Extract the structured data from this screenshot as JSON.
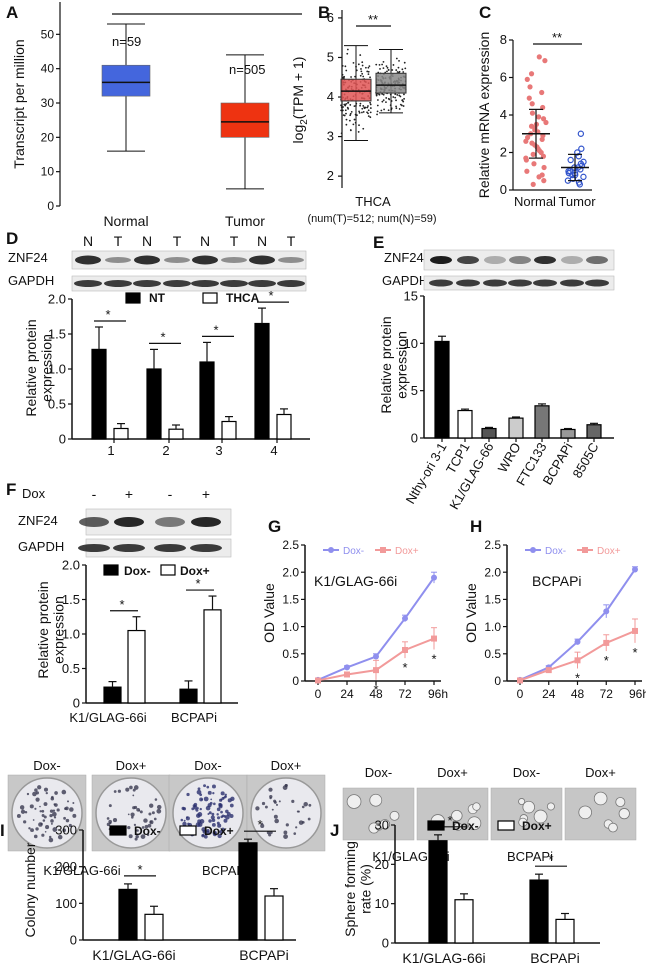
{
  "panels": {
    "A": {
      "letter": "A"
    },
    "B": {
      "letter": "B"
    },
    "C": {
      "letter": "C"
    },
    "D": {
      "letter": "D"
    },
    "E": {
      "letter": "E"
    },
    "F": {
      "letter": "F"
    },
    "G": {
      "letter": "G"
    },
    "H": {
      "letter": "H"
    },
    "I": {
      "letter": "I"
    },
    "J": {
      "letter": "J"
    }
  },
  "blots": {
    "D": {
      "rows": [
        "ZNF24",
        "GAPDH"
      ],
      "lanes": [
        "N",
        "T",
        "N",
        "T",
        "N",
        "T",
        "N",
        "T"
      ]
    },
    "E": {
      "rows": [
        "ZNF24",
        "GAPDH"
      ]
    },
    "F": {
      "rows": [
        "ZNF24",
        "GAPDH"
      ],
      "dox_label": "Dox",
      "lanes": [
        "-",
        "+",
        "-",
        "+"
      ]
    }
  },
  "images": {
    "I": {
      "labels": [
        "Dox-",
        "Dox+",
        "Dox-",
        "Dox+"
      ],
      "groups": [
        "K1/GLAG-66i",
        "BCPAPi"
      ]
    },
    "J": {
      "labels": [
        "Dox-",
        "Dox+",
        "Dox-",
        "Dox+"
      ],
      "groups": [
        "K1/GLAG-66i",
        "BCPAPi"
      ]
    }
  },
  "colors": {
    "normal_box": "#4466dd",
    "tumor_box": "#ee3311",
    "thca_red": "#e05555",
    "thca_grey": "#888888",
    "c_normal": "#e87878",
    "c_tumor": "#3355cc",
    "dox_minus": "#8f8fee",
    "dox_plus": "#f29a9a"
  },
  "chart_data": [
    {
      "id": "A",
      "type": "box",
      "ylabel": "Transcript per million",
      "categories": [
        "Normal",
        "Tumor"
      ],
      "ylim": [
        0,
        60
      ],
      "yticks": [
        0,
        10,
        20,
        30,
        40,
        50
      ],
      "annotations": [
        "n=59",
        "n=505"
      ],
      "boxes": [
        {
          "min": 16,
          "q1": 32,
          "median": 36,
          "q3": 41,
          "max": 53
        },
        {
          "min": 5,
          "q1": 20,
          "median": 24.5,
          "q3": 30,
          "max": 44
        }
      ]
    },
    {
      "id": "B",
      "type": "box",
      "ylabel": "log2(TPM + 1)",
      "ylabel_main": "log",
      "ylabel_sub": "2",
      "ylabel_rest": "(TPM + 1)",
      "xlabel": "THCA",
      "note": "(num(T)=512; num(N)=59)",
      "significance": "**",
      "ylim": [
        1.7,
        6.2
      ],
      "yticks": [
        2,
        3,
        4,
        5,
        6
      ],
      "boxes": [
        {
          "min": 2.9,
          "q1": 3.9,
          "median": 4.15,
          "q3": 4.45,
          "max": 5.3
        },
        {
          "min": 3.6,
          "q1": 4.1,
          "median": 4.3,
          "q3": 4.6,
          "max": 5.2
        }
      ]
    },
    {
      "id": "C",
      "type": "scatter",
      "ylabel": "Relative mRNA expression",
      "categories": [
        "Normal",
        "Tumor"
      ],
      "significance": "**",
      "ylim": [
        0,
        8
      ],
      "yticks": [
        0,
        2,
        4,
        6,
        8
      ],
      "means": [
        3.0,
        1.2
      ],
      "sd": [
        1.3,
        0.7
      ],
      "points": [
        [
          7.1,
          6.9,
          6.2,
          5.9,
          5.5,
          5.2,
          4.9,
          4.6,
          4.4,
          4.1,
          3.9,
          3.8,
          3.6,
          3.5,
          3.4,
          3.3,
          3.2,
          3.1,
          3.0,
          2.9,
          2.8,
          2.7,
          2.6,
          2.5,
          2.4,
          2.3,
          2.2,
          2.1,
          2.0,
          1.9,
          1.8,
          1.7,
          1.6,
          1.4,
          1.2,
          1.0,
          0.8,
          0.7,
          0.5,
          0.3
        ],
        [
          3.0,
          2.2,
          2.0,
          1.8,
          1.6,
          1.5,
          1.4,
          1.3,
          1.2,
          1.2,
          1.1,
          1.0,
          1.0,
          0.9,
          0.9,
          0.8,
          0.8,
          0.7,
          0.6,
          0.5,
          0.4,
          0.3
        ]
      ]
    },
    {
      "id": "D",
      "type": "bar",
      "ylabel": "Relative protein expression",
      "ylabel_l1": "Relative protein",
      "ylabel_l2": "expression",
      "categories": [
        "1",
        "2",
        "3",
        "4"
      ],
      "ylim": [
        0,
        2.0
      ],
      "yticks": [
        "0",
        "0.5",
        "1.0",
        "1.5",
        "2.0"
      ],
      "series": [
        {
          "name": "NT",
          "values": [
            1.28,
            1.0,
            1.1,
            1.65
          ],
          "err": [
            0.32,
            0.28,
            0.28,
            0.22
          ]
        },
        {
          "name": "THCA",
          "values": [
            0.15,
            0.14,
            0.25,
            0.35
          ],
          "err": [
            0.07,
            0.06,
            0.07,
            0.08
          ]
        }
      ],
      "significance": [
        "*",
        "*",
        "*",
        "*"
      ]
    },
    {
      "id": "E",
      "type": "bar",
      "ylabel": "Relative protein expression",
      "ylabel_l1": "Relative protein",
      "ylabel_l2": "expression",
      "categories": [
        "Nthy-ori 3-1",
        "TCP1",
        "K1/GLAG-66",
        "WRO",
        "FTC133",
        "BCPAPi",
        "8505C"
      ],
      "ylim": [
        0,
        15
      ],
      "yticks": [
        0,
        5,
        10,
        15
      ],
      "values": [
        10.2,
        2.9,
        1.0,
        2.1,
        3.4,
        0.9,
        1.4
      ],
      "err": [
        0.55,
        0.15,
        0.12,
        0.12,
        0.2,
        0.1,
        0.15
      ],
      "fills": [
        "#000000",
        "#ffffff",
        "#555555",
        "#cccccc",
        "#777777",
        "#999999",
        "#666666"
      ]
    },
    {
      "id": "F",
      "type": "bar",
      "ylabel": "Relative protein expression",
      "ylabel_l1": "Relative protein",
      "ylabel_l2": "expression",
      "categories": [
        "K1/GLAG-66i",
        "BCPAPi"
      ],
      "ylim": [
        0,
        2.0
      ],
      "yticks": [
        "0",
        "0.5",
        "1.0",
        "1.5",
        "2.0"
      ],
      "series": [
        {
          "name": "Dox-",
          "values": [
            0.23,
            0.2
          ],
          "err": [
            0.08,
            0.12
          ]
        },
        {
          "name": "Dox+",
          "values": [
            1.05,
            1.35
          ],
          "err": [
            0.2,
            0.2
          ]
        }
      ],
      "significance": [
        "*",
        "*"
      ]
    },
    {
      "id": "G",
      "type": "line",
      "ylabel": "OD Value",
      "title": "K1/GLAG-66i",
      "x": [
        "0",
        "24",
        "48",
        "72",
        "96h"
      ],
      "ylim": [
        0,
        2.5
      ],
      "yticks": [
        "0",
        "0.5",
        "1.0",
        "1.5",
        "2.0",
        "2.5"
      ],
      "series": [
        {
          "name": "Dox-",
          "values": [
            0.02,
            0.25,
            0.45,
            1.15,
            1.9
          ],
          "err": [
            0.02,
            0.03,
            0.05,
            0.06,
            0.1
          ]
        },
        {
          "name": "Dox+",
          "values": [
            0.01,
            0.12,
            0.2,
            0.57,
            0.78
          ],
          "err": [
            0.01,
            0.03,
            0.18,
            0.15,
            0.2
          ]
        }
      ],
      "significance": [
        "",
        "",
        "*",
        "*",
        "*"
      ]
    },
    {
      "id": "H",
      "type": "line",
      "ylabel": "OD Value",
      "title": "BCPAPi",
      "x": [
        "0",
        "24",
        "48",
        "72",
        "96h"
      ],
      "ylim": [
        0,
        2.5
      ],
      "yticks": [
        "0",
        "0.5",
        "1.0",
        "1.5",
        "2.0",
        "2.5"
      ],
      "series": [
        {
          "name": "Dox-",
          "values": [
            0.02,
            0.25,
            0.72,
            1.28,
            2.05
          ],
          "err": [
            0.02,
            0.03,
            0.05,
            0.12,
            0.05
          ]
        },
        {
          "name": "Dox+",
          "values": [
            0.01,
            0.2,
            0.38,
            0.7,
            0.92
          ],
          "err": [
            0.01,
            0.03,
            0.15,
            0.15,
            0.22
          ]
        }
      ],
      "significance": [
        "",
        "",
        "*",
        "*",
        "*"
      ]
    },
    {
      "id": "I",
      "type": "bar",
      "ylabel": "Colony number",
      "categories": [
        "K1/GLAG-66i",
        "BCPAPi"
      ],
      "ylim": [
        0,
        300
      ],
      "yticks": [
        "0",
        "100",
        "200",
        "300"
      ],
      "series": [
        {
          "name": "Dox-",
          "values": [
            138,
            265
          ],
          "err": [
            15,
            10
          ]
        },
        {
          "name": "Dox+",
          "values": [
            70,
            120
          ],
          "err": [
            22,
            20
          ]
        }
      ],
      "significance": [
        "*",
        "*"
      ]
    },
    {
      "id": "J",
      "type": "bar",
      "ylabel": "Sphere forming rate (%)",
      "ylabel_l1": "Sphere forming",
      "ylabel_l2": "rate (%)",
      "categories": [
        "K1/GLAG-66i",
        "BCPAPi"
      ],
      "ylim": [
        0,
        30
      ],
      "yticks": [
        "0",
        "10",
        "20",
        "30"
      ],
      "series": [
        {
          "name": "Dox-",
          "values": [
            26,
            16
          ],
          "err": [
            1.5,
            1.5
          ]
        },
        {
          "name": "Dox+",
          "values": [
            11,
            6
          ],
          "err": [
            1.5,
            1.5
          ]
        }
      ],
      "significance": [
        "*",
        "*"
      ]
    }
  ]
}
